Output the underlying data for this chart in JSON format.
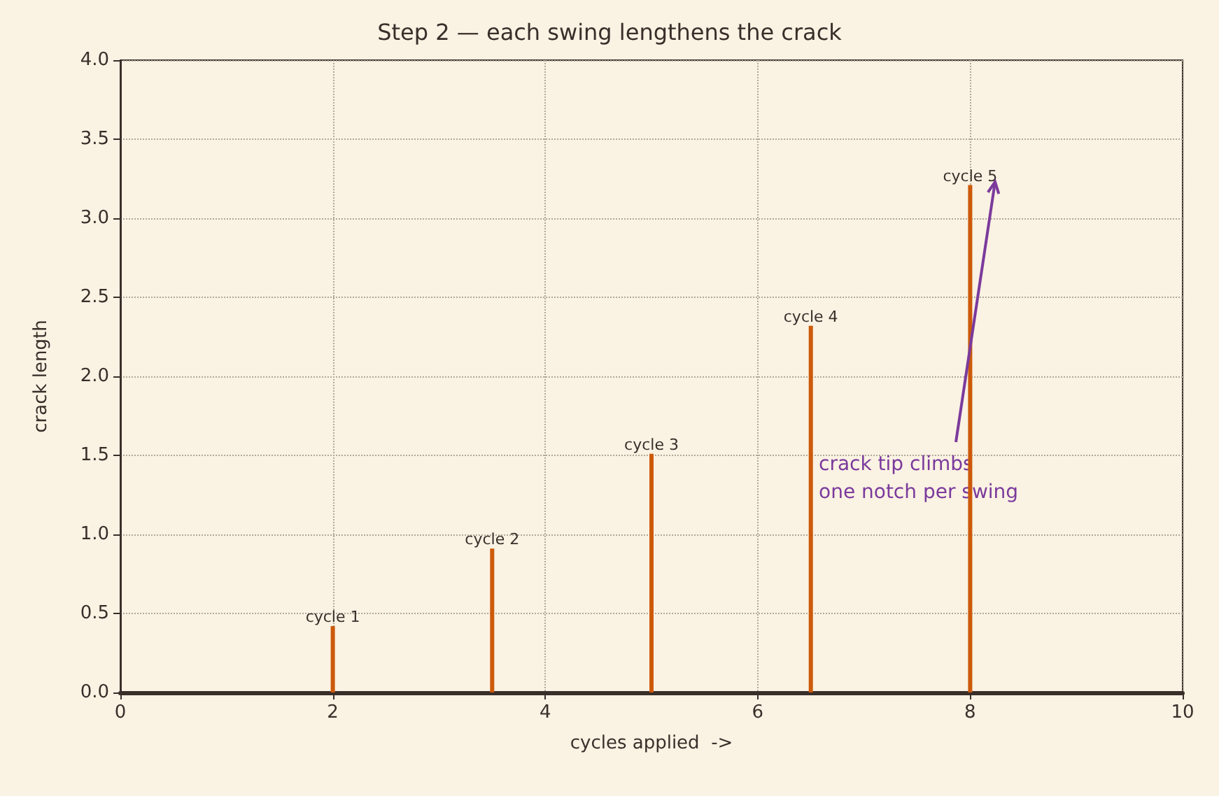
{
  "chart_data": {
    "type": "bar",
    "title": "Step 2 — each swing lengthens the crack",
    "xlabel": "cycles applied  ->",
    "ylabel": "crack length",
    "x": [
      2,
      3.5,
      5,
      6.5,
      8
    ],
    "values": [
      0.42,
      0.91,
      1.51,
      2.32,
      3.21
    ],
    "value_labels": [
      "cycle 1",
      "cycle 2",
      "cycle 3",
      "cycle 4",
      "cycle 5"
    ],
    "color": "#cc5a0a",
    "xlim": [
      0,
      10
    ],
    "xticks": [
      0,
      2,
      4,
      6,
      8,
      10
    ],
    "ylim": [
      0,
      4
    ],
    "yticks": [
      {
        "value": 0,
        "label": "0.0"
      },
      0.5,
      {
        "value": 1,
        "label": "1.0"
      },
      1.5,
      {
        "value": 2,
        "label": "2.0"
      },
      2.5,
      {
        "value": 3,
        "label": "3.0"
      },
      3.5,
      {
        "value": 4,
        "label": "4.0"
      }
    ],
    "grid": true,
    "annotations": [
      "crack tip climbs\none notch per swing"
    ]
  }
}
